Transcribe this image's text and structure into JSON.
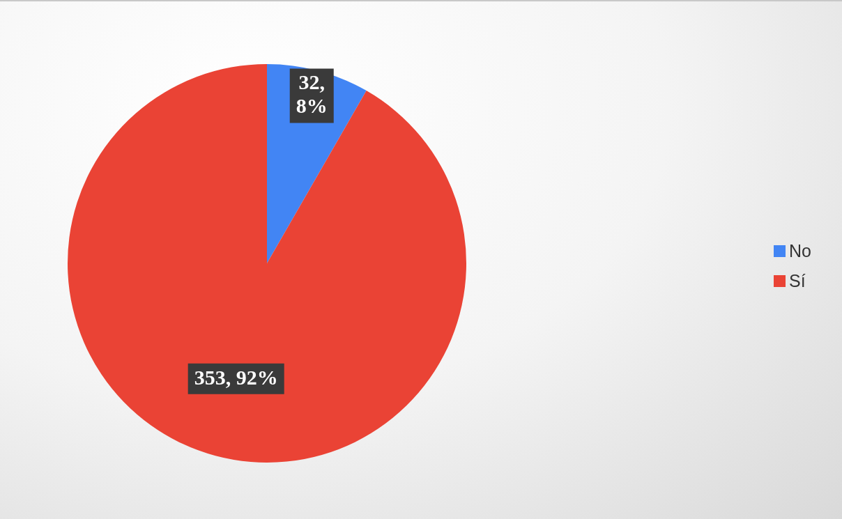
{
  "chart_data": {
    "type": "pie",
    "categories": [
      "No",
      "Sí"
    ],
    "values": [
      32,
      353
    ],
    "colors": [
      "#4285f4",
      "#ea4335"
    ],
    "value_labels": [
      "32, 8%",
      "353, 92%"
    ],
    "legend": "right"
  }
}
